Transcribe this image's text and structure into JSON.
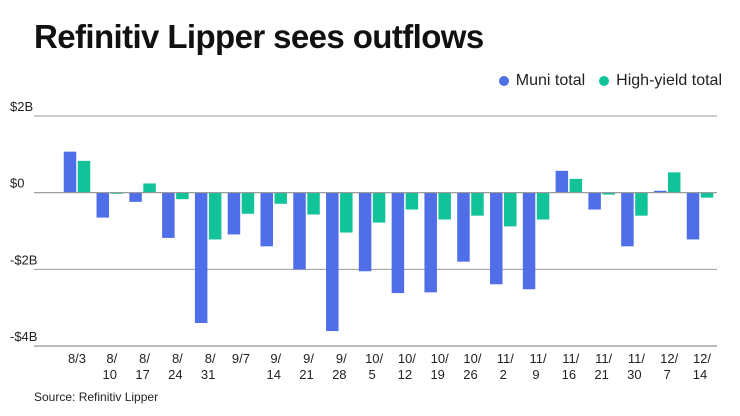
{
  "chart_data": {
    "type": "bar",
    "title": "Refinitiv Lipper sees outflows",
    "xlabel": "",
    "ylabel": "",
    "ylim": [
      -4,
      2
    ],
    "y_unit": "$B",
    "yticks": [
      {
        "value": 2,
        "label": "$2B"
      },
      {
        "value": 0,
        "label": "$0"
      },
      {
        "value": -2,
        "label": "-$2B"
      },
      {
        "value": -4,
        "label": "-$4B"
      }
    ],
    "grid": true,
    "legend_position": "top-right",
    "categories": [
      "8/3",
      "8/10",
      "8/17",
      "8/24",
      "8/31",
      "9/7",
      "9/14",
      "9/21",
      "9/28",
      "10/5",
      "10/12",
      "10/19",
      "10/26",
      "11/2",
      "11/9",
      "11/16",
      "11/21",
      "11/30",
      "12/7",
      "12/14"
    ],
    "category_label_lines": [
      [
        "8/3"
      ],
      [
        "8/",
        "10"
      ],
      [
        "8/",
        "17"
      ],
      [
        "8/",
        "24"
      ],
      [
        "8/",
        "31"
      ],
      [
        "9/7"
      ],
      [
        "9/",
        "14"
      ],
      [
        "9/",
        "21"
      ],
      [
        "9/",
        "28"
      ],
      [
        "10/",
        "5"
      ],
      [
        "10/",
        "12"
      ],
      [
        "10/",
        "19"
      ],
      [
        "10/",
        "26"
      ],
      [
        "11/",
        "2"
      ],
      [
        "11/",
        "9"
      ],
      [
        "11/",
        "16"
      ],
      [
        "11/",
        "21"
      ],
      [
        "11/",
        "30"
      ],
      [
        "12/",
        "7"
      ],
      [
        "12/",
        "14"
      ]
    ],
    "series": [
      {
        "name": "Muni total",
        "color": "#4f6ee8",
        "values": [
          1.07,
          -0.65,
          -0.24,
          -1.18,
          -3.4,
          -1.09,
          -1.4,
          -2.0,
          -3.61,
          -2.05,
          -2.62,
          -2.6,
          -1.8,
          -2.39,
          -2.52,
          0.57,
          -0.44,
          -1.4,
          0.05,
          -1.22
        ]
      },
      {
        "name": "High-yield total",
        "color": "#12c39a",
        "values": [
          0.83,
          -0.03,
          0.24,
          -0.17,
          -1.22,
          -0.55,
          -0.29,
          -0.57,
          -1.04,
          -0.78,
          -0.44,
          -0.7,
          -0.6,
          -0.88,
          -0.7,
          0.36,
          -0.05,
          -0.6,
          0.53,
          -0.13
        ]
      }
    ],
    "source": "Source: Refinitiv Lipper"
  }
}
